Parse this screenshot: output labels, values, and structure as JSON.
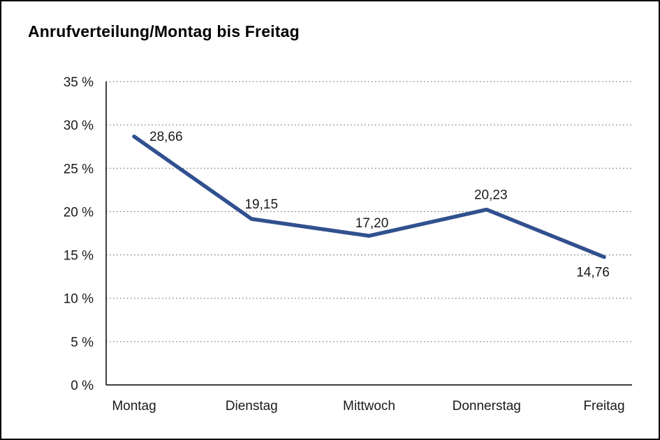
{
  "title": "Anrufverteilung/Montag bis Freitag",
  "chart_data": {
    "type": "line",
    "title": "Anrufverteilung/Montag bis Freitag",
    "categories": [
      "Montag",
      "Dienstag",
      "Mittwoch",
      "Donnerstag",
      "Freitag"
    ],
    "values": [
      28.66,
      19.15,
      17.2,
      20.23,
      14.76
    ],
    "data_labels": [
      "28,66",
      "19,15",
      "17,20",
      "20,23",
      "14,76"
    ],
    "xlabel": "",
    "ylabel": "",
    "ylim": [
      0,
      35
    ],
    "ytick_step": 5,
    "ytick_labels": [
      "0 %",
      "5 %",
      "10 %",
      "15 %",
      "20 %",
      "25 %",
      "30 %",
      "35 %"
    ],
    "line_color": "#31508f",
    "grid": "dotted-horizontal",
    "legend": "none"
  }
}
